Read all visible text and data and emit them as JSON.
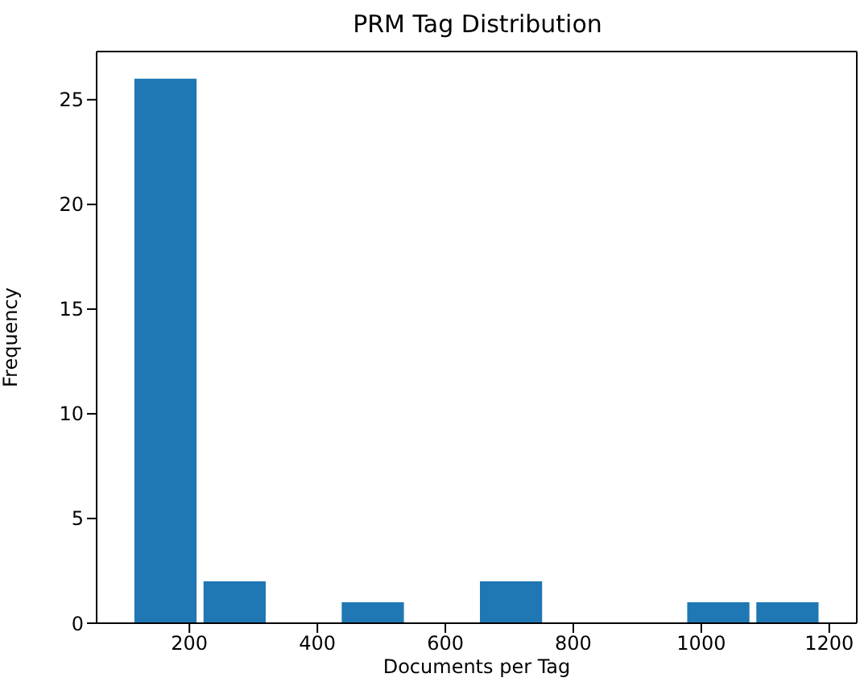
{
  "chart_data": {
    "type": "histogram",
    "title": "PRM Tag Distribution",
    "xlabel": "Documents per Tag",
    "ylabel": "Frequency",
    "bins": [
      109,
      217,
      325,
      433,
      541,
      649,
      757,
      865,
      973,
      1081,
      1189
    ],
    "values": [
      26,
      2,
      0,
      1,
      0,
      2,
      0,
      0,
      1,
      1
    ],
    "color": "#1f77b4",
    "xlim": [
      55,
      1243
    ],
    "xticks": [
      200,
      400,
      600,
      800,
      1000,
      1200
    ],
    "ylim": [
      0,
      27.3
    ],
    "yticks": [
      0,
      5,
      10,
      15,
      20,
      25
    ],
    "grid": false,
    "legend": false
  }
}
